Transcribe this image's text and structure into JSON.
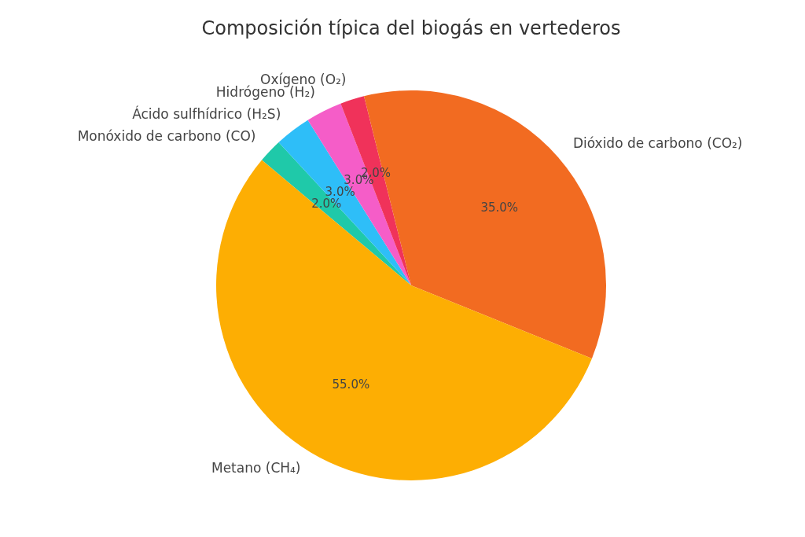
{
  "chart_data": {
    "type": "pie",
    "title": "Composición típica del biogás en vertederos",
    "categories": [
      "Monóxido de carbono (CO)",
      "Ácido sulfhídrico (H₂S)",
      "Hidrógeno (H₂)",
      "Oxígeno (O₂)",
      "Dióxido de carbono (CO₂)",
      "Metano (CH₄)"
    ],
    "values": [
      2,
      3,
      3,
      2,
      35,
      55
    ],
    "colors": [
      "#1fc9a9",
      "#2ebef8",
      "#f55dc8",
      "#f0325a",
      "#f26b21",
      "#fdae03"
    ],
    "value_labels": [
      "2.0%",
      "3.0%",
      "3.0%",
      "2.0%",
      "35.0%",
      "55.0%"
    ],
    "legend": false
  }
}
